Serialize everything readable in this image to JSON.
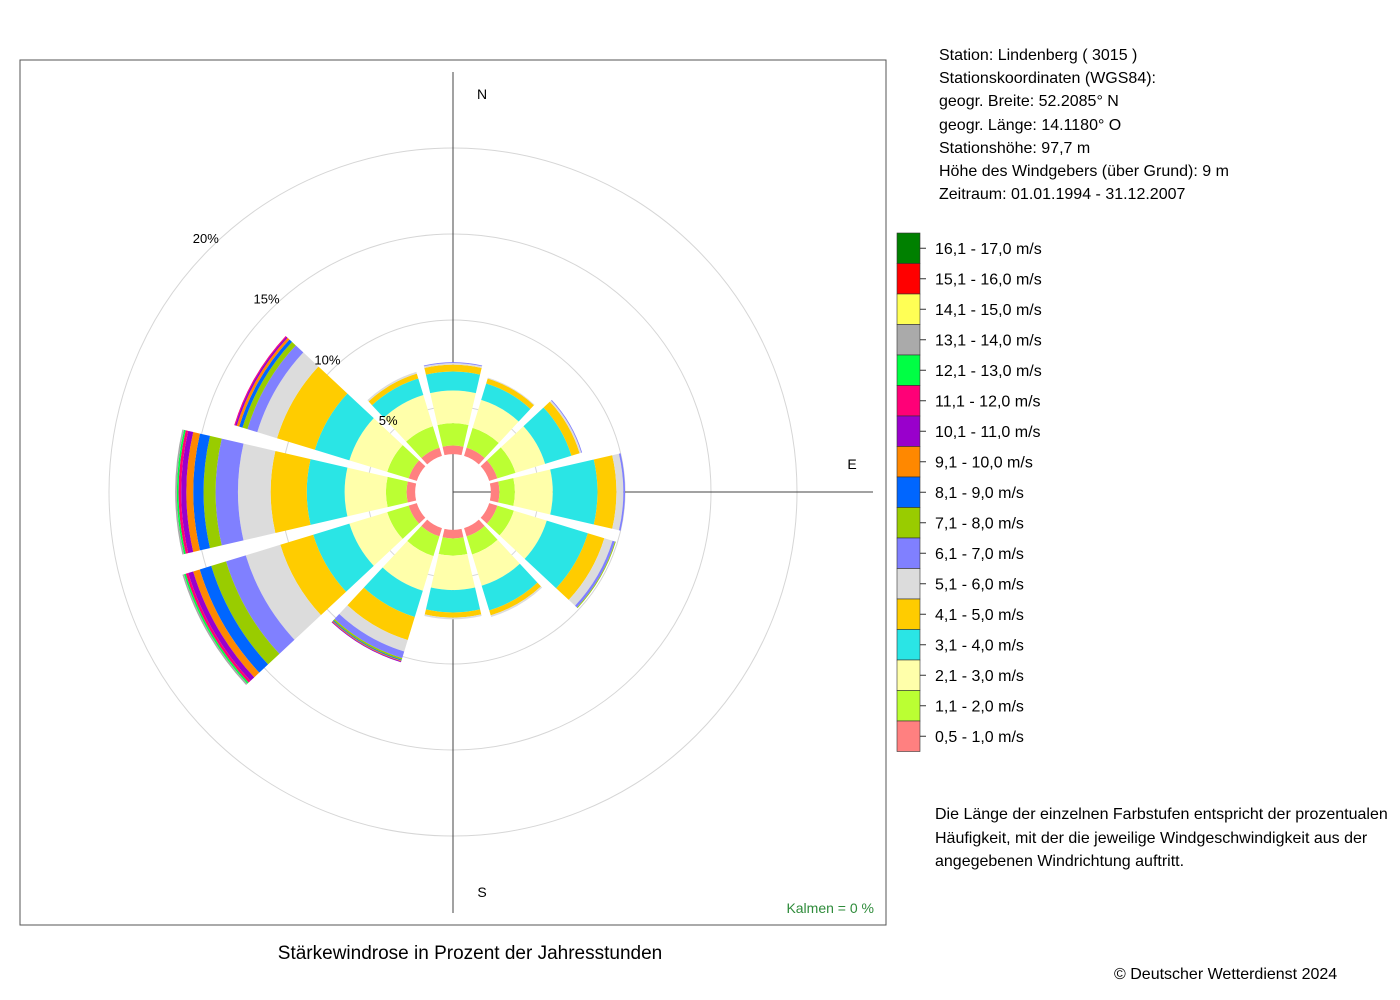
{
  "station": {
    "station_label": "Station:  Lindenberg  ( 3015 )",
    "coords_label": "Stationskoordinaten (WGS84):",
    "latitude_label": "geogr. Breite: 52.2085° N",
    "longitude_label": "geogr. Länge: 14.1180° O",
    "height_label": "Stationshöhe: 97,7 m",
    "sensor_label": "Höhe des Windgebers (über Grund): 9 m",
    "period_label": "Zeitraum: 01.01.1994 - 31.12.2007"
  },
  "note": "Die Länge der einzelnen Farbstufen entspricht der prozentualen Häufigkeit, mit der die jeweilige Windgeschwindigkeit aus der angegebenen Windrichtung auftritt.",
  "caption": "Stärkewindrose in Prozent der Jahresstunden",
  "copyright": "© Deutscher Wetterdienst  2024",
  "calm_label": "Kalmen  =  0 %",
  "chart_data": {
    "type": "windrose",
    "title": "Stärkewindrose in Prozent der Jahresstunden",
    "direction_labels": [
      "N",
      "E",
      "S"
    ],
    "ring_labels": [
      "5%",
      "10%",
      "15%",
      "20%"
    ],
    "rings_percent": [
      5,
      10,
      15,
      20
    ],
    "inner_radius_percent": 2.2,
    "sector_width_deg": 26,
    "speed_classes": [
      {
        "label": "0,5 - 1,0 m/s",
        "color": "#FF8080"
      },
      {
        "label": "1,1 - 2,0 m/s",
        "color": "#BBFF33"
      },
      {
        "label": "2,1 - 3,0 m/s",
        "color": "#FFFFAA"
      },
      {
        "label": "3,1 - 4,0 m/s",
        "color": "#2AE5E5"
      },
      {
        "label": "4,1 - 5,0 m/s",
        "color": "#FFCC00"
      },
      {
        "label": "5,1 - 6,0 m/s",
        "color": "#DCDCDC"
      },
      {
        "label": "6,1 - 7,0 m/s",
        "color": "#8080FF"
      },
      {
        "label": "7,1 - 8,0 m/s",
        "color": "#99CC00"
      },
      {
        "label": "8,1 - 9,0 m/s",
        "color": "#0066FF"
      },
      {
        "label": "9,1 - 10,0 m/s",
        "color": "#FF8800"
      },
      {
        "label": "10,1 - 11,0 m/s",
        "color": "#9900CC"
      },
      {
        "label": "11,1 - 12,0 m/s",
        "color": "#FF0077"
      },
      {
        "label": "12,1 - 13,0 m/s",
        "color": "#00FF44"
      },
      {
        "label": "13,1 - 14,0 m/s",
        "color": "#AAAAAA"
      },
      {
        "label": "14,1 - 15,0 m/s",
        "color": "#FFFF55"
      },
      {
        "label": "15,1 - 16,0 m/s",
        "color": "#FF0000"
      },
      {
        "label": "16,1 - 17,0 m/s",
        "color": "#008000"
      }
    ],
    "sectors": [
      {
        "direction_deg": 0,
        "values": [
          0.5,
          1.3,
          1.9,
          1.1,
          0.4,
          0.1,
          0.05
        ]
      },
      {
        "direction_deg": 30,
        "values": [
          0.5,
          1.2,
          1.7,
          1.0,
          0.3,
          0.05
        ]
      },
      {
        "direction_deg": 60,
        "values": [
          0.5,
          1.1,
          1.8,
          1.6,
          0.5,
          0.1,
          0.05
        ]
      },
      {
        "direction_deg": 90,
        "values": [
          0.5,
          0.9,
          2.2,
          2.6,
          1.1,
          0.4,
          0.1
        ]
      },
      {
        "direction_deg": 120,
        "values": [
          0.5,
          1.0,
          2.0,
          2.5,
          1.0,
          0.5,
          0.15,
          0.05
        ]
      },
      {
        "direction_deg": 150,
        "values": [
          0.5,
          1.1,
          1.9,
          1.5,
          0.3,
          0.1
        ]
      },
      {
        "direction_deg": 180,
        "values": [
          0.5,
          1.0,
          2.0,
          1.3,
          0.3,
          0.1
        ]
      },
      {
        "direction_deg": 210,
        "values": [
          0.5,
          1.2,
          2.1,
          1.6,
          1.4,
          0.7,
          0.4,
          0.1,
          0.05,
          0.05,
          0.05
        ]
      },
      {
        "direction_deg": 240,
        "values": [
          0.5,
          1.3,
          2.3,
          2.2,
          2.0,
          2.1,
          1.2,
          0.9,
          0.7,
          0.4,
          0.3,
          0.15,
          0.1,
          0.1
        ]
      },
      {
        "direction_deg": 270,
        "values": [
          0.5,
          1.2,
          2.4,
          2.2,
          2.1,
          1.9,
          1.3,
          0.7,
          0.6,
          0.4,
          0.3,
          0.15,
          0.1,
          0.1
        ]
      },
      {
        "direction_deg": 300,
        "values": [
          0.5,
          1.3,
          2.3,
          2.1,
          2.3,
          1.2,
          0.6,
          0.3,
          0.2,
          0.15,
          0.1,
          0.05
        ]
      },
      {
        "direction_deg": 330,
        "values": [
          0.5,
          1.3,
          1.9,
          1.0,
          0.3,
          0.1
        ]
      }
    ]
  }
}
